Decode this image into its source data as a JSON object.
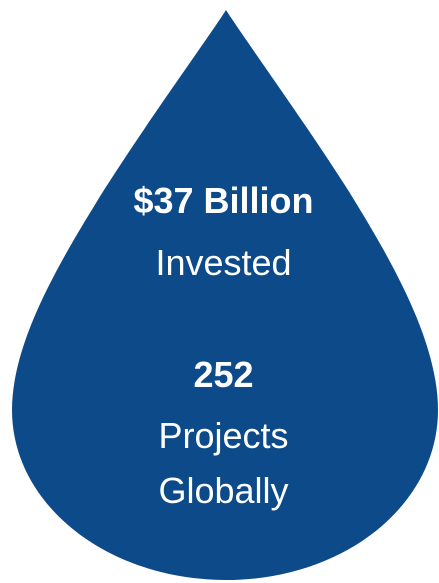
{
  "colors": {
    "drop_fill": "#0d4a89",
    "text": "#ffffff",
    "background": "#ffffff"
  },
  "icons": {
    "drop": "water-drop-icon"
  },
  "stat1": {
    "value": "$37 Billion",
    "label": "Invested"
  },
  "stat2": {
    "value": "252",
    "label_line1": "Projects",
    "label_line2": "Globally"
  }
}
